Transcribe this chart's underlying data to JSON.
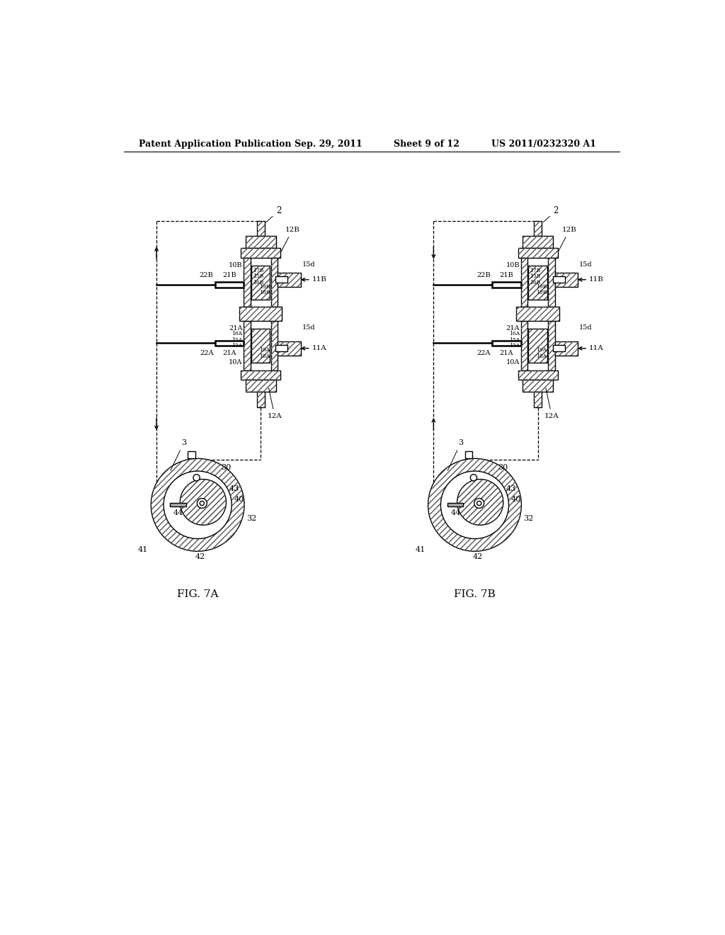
{
  "bg_color": "#ffffff",
  "header_text": "Patent Application Publication",
  "header_date": "Sep. 29, 2011",
  "header_sheet": "Sheet 9 of 12",
  "header_patent": "US 2011/0232320 A1",
  "fig7a_label": "FIG. 7A",
  "fig7b_label": "FIG. 7B",
  "line_color": "#000000"
}
